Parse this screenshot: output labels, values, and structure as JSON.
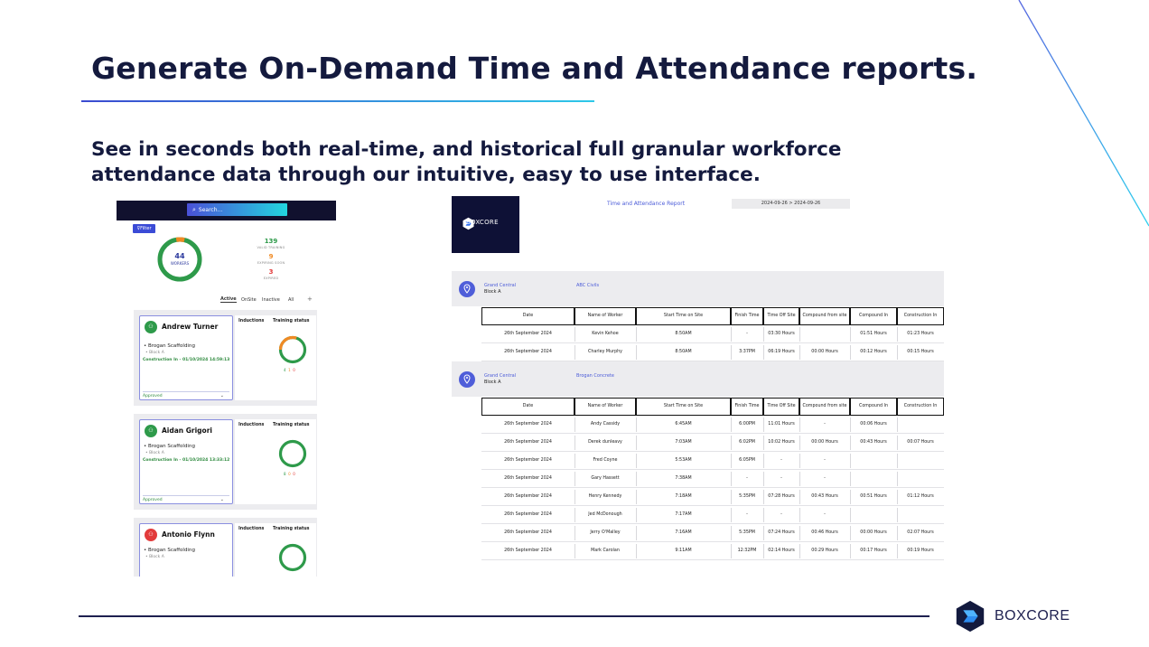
{
  "slide": {
    "title": "Generate On-Demand Time and Attendance reports.",
    "subtitle": "See in seconds both real-time, and historical full granular workforce attendance data through our intuitive, easy to use interface.",
    "brand": "BOXCORE",
    "colors": {
      "navy": "#141a3e",
      "accent_blue": "#4b5bd8",
      "green": "#2e9a4a",
      "orange": "#f08a24",
      "red": "#e23b3b"
    }
  },
  "app": {
    "search_placeholder": "Search...",
    "search_icon": "search-icon",
    "filter_label": "Filter",
    "workers_count": "44",
    "workers_label": "WORKERS",
    "stats": [
      {
        "value": "139",
        "label": "VALID TRAINING",
        "color": "#2e9a4a"
      },
      {
        "value": "9",
        "label": "EXPIRING SOON",
        "color": "#f08a24"
      },
      {
        "value": "3",
        "label": "EXPIRED",
        "color": "#e23b3b"
      }
    ],
    "tabs": [
      "Active",
      "OnSite",
      "Inactive",
      "All"
    ],
    "add_label": "+",
    "inductions_header": "Inductions",
    "training_header": "Training status",
    "workers": [
      {
        "name": "Andrew Turner",
        "company": "Brogan Scaffolding",
        "block": "Block A",
        "checkin": "Construction In - 01/10/2024 14:59:13",
        "status": "Approved",
        "avatar_color": "#2e9a4a",
        "counts": [
          "4",
          "1",
          "0"
        ],
        "training_fraction_orange": 0.3
      },
      {
        "name": "Aidan Grigori",
        "company": "Brogan Scaffolding",
        "block": "Block A",
        "checkin": "Construction In - 01/10/2024 13:33:12",
        "status": "Approved",
        "avatar_color": "#2e9a4a",
        "counts": [
          "8",
          "0",
          "0"
        ],
        "training_fraction_orange": 0
      },
      {
        "name": "Antonio Flynn",
        "company": "Brogan Scaffolding",
        "block": "Block A",
        "checkin": "",
        "status": "",
        "avatar_color": "#e23b3b",
        "counts": [
          "",
          "",
          ""
        ],
        "training_fraction_orange": 0
      }
    ]
  },
  "report": {
    "logo_text": "BOXCORE",
    "title": "Time and Attendance Report",
    "date_range": "2024-09-26 > 2024-09-26",
    "columns": [
      "Date",
      "Name of Worker",
      "Start Time on Site",
      "Finish Time",
      "Time Off Site",
      "Compound from site",
      "Compound In",
      "Construction In"
    ],
    "sites": [
      {
        "site": "Grand Central",
        "block": "Block A",
        "company": "ABC Civils",
        "rows": [
          [
            "26th September 2024",
            "Kevin Kehoe",
            "8:50AM",
            "-",
            "03:30 Hours",
            "",
            "01:51 Hours",
            "01:23 Hours"
          ],
          [
            "26th September 2024",
            "Charley Murphy",
            "8:50AM",
            "3:37PM",
            "06:19 Hours",
            "00:00 Hours",
            "00:12 Hours",
            "00:15 Hours"
          ]
        ]
      },
      {
        "site": "Grand Central",
        "block": "Block A",
        "company": "Brogan Concrete",
        "rows": [
          [
            "26th September 2024",
            "Andy Cassidy",
            "6:45AM",
            "6:00PM",
            "11:01 Hours",
            "-",
            "00:06 Hours",
            ""
          ],
          [
            "26th September 2024",
            "Derek dunleavy",
            "7:03AM",
            "6:02PM",
            "10:02 Hours",
            "00:00 Hours",
            "00:43 Hours",
            "00:07 Hours"
          ],
          [
            "26th September 2024",
            "Fred Coyne",
            "5:53AM",
            "6:05PM",
            "-",
            "-",
            "",
            ""
          ],
          [
            "26th September 2024",
            "Gary Hassett",
            "7:38AM",
            "-",
            "-",
            "-",
            "",
            ""
          ],
          [
            "26th September 2024",
            "Henry Kennedy",
            "7:18AM",
            "5:35PM",
            "07:28 Hours",
            "00:43 Hours",
            "00:51 Hours",
            "01:12 Hours"
          ],
          [
            "26th September 2024",
            "Jed McDonough",
            "7:17AM",
            "-",
            "-",
            "-",
            "",
            ""
          ],
          [
            "26th September 2024",
            "Jerry O'Malley",
            "7:16AM",
            "5:35PM",
            "07:24 Hours",
            "00:46 Hours",
            "00:00 Hours",
            "02:07 Hours"
          ],
          [
            "26th September 2024",
            "Mark Carolan",
            "9:11AM",
            "12:32PM",
            "02:14 Hours",
            "00:29 Hours",
            "00:17 Hours",
            "00:19 Hours"
          ]
        ]
      }
    ]
  }
}
